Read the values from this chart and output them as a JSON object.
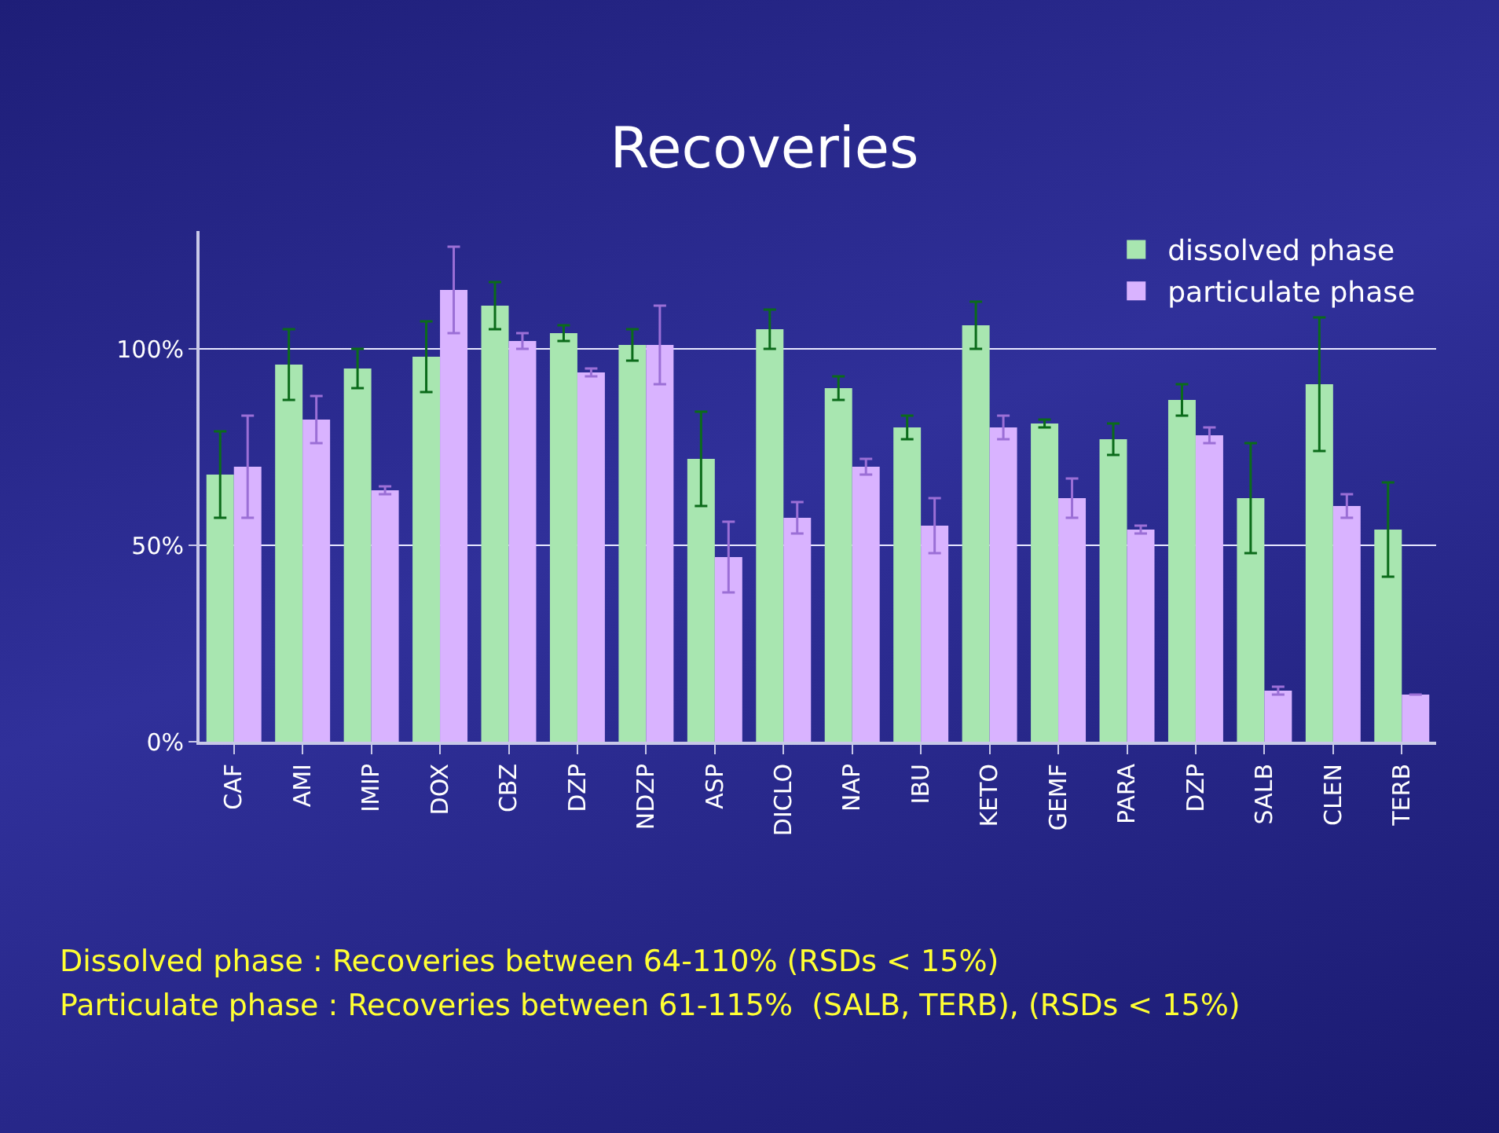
{
  "chart_data": {
    "type": "bar",
    "title": "Recoveries",
    "categories": [
      "CAF",
      "AMI",
      "IMIP",
      "DOX",
      "CBZ",
      "DZP",
      "NDZP",
      "ASP",
      "DICLO",
      "NAP",
      "IBU",
      "KETO",
      "GEMF",
      "PARA",
      "DZP",
      "SALB",
      "CLEN",
      "TERB"
    ],
    "series": [
      {
        "name": "dissolved phase",
        "color": "#a8e6b0",
        "values": [
          68,
          96,
          95,
          98,
          111,
          104,
          101,
          72,
          105,
          90,
          80,
          106,
          81,
          77,
          87,
          62,
          91,
          54
        ],
        "errors": [
          11,
          9,
          5,
          9,
          6,
          2,
          4,
          12,
          5,
          3,
          3,
          6,
          1,
          4,
          4,
          14,
          17,
          12
        ]
      },
      {
        "name": "particulate phase",
        "color": "#d9b3ff",
        "values": [
          70,
          82,
          64,
          115,
          102,
          94,
          101,
          47,
          57,
          70,
          55,
          80,
          62,
          54,
          78,
          13,
          60,
          12
        ],
        "errors": [
          13,
          6,
          1,
          11,
          2,
          1,
          10,
          9,
          4,
          2,
          7,
          3,
          5,
          1,
          2,
          1,
          3,
          null
        ]
      }
    ],
    "ylim": [
      0,
      130
    ],
    "yticks": [
      {
        "value": 0,
        "label": "0%"
      },
      {
        "value": 50,
        "label": "50%"
      },
      {
        "value": 100,
        "label": "100%"
      }
    ],
    "grid": "y",
    "legend": "top right",
    "annotations": [
      "Dissolved phase : Recoveries between 64-110% (RSDs < 15%)",
      "Particulate phase : Recoveries between 61-115%  (SALB, TERB), (RSDs < 15%)"
    ]
  }
}
